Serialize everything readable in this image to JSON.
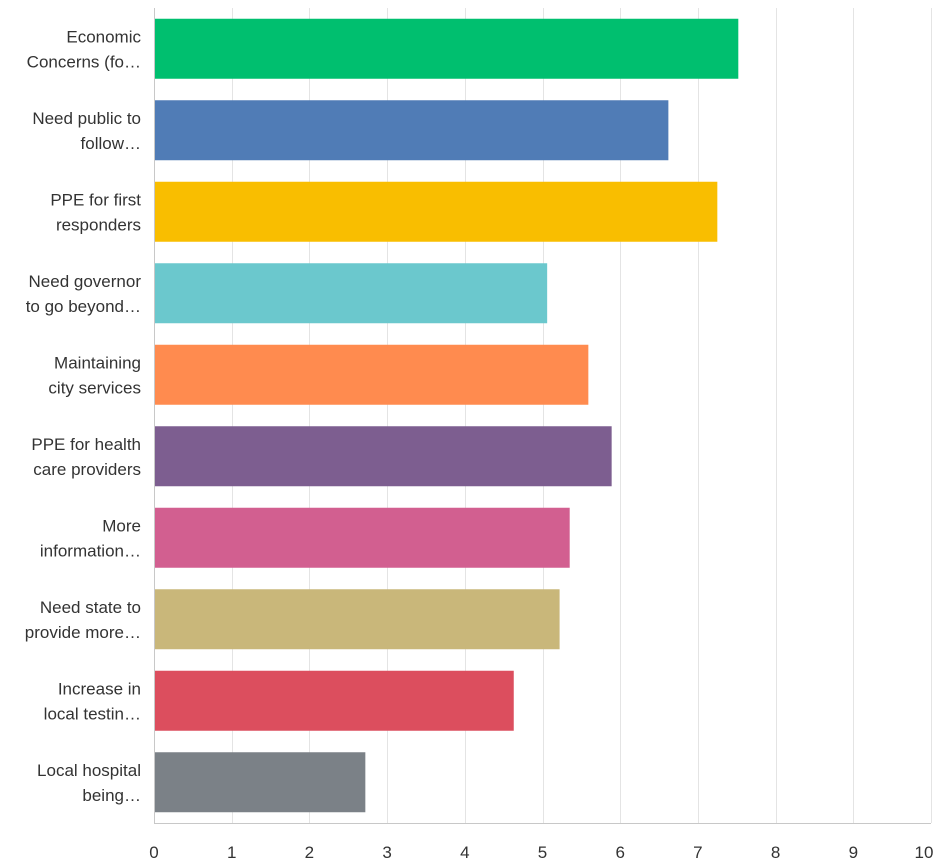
{
  "chart_data": {
    "type": "bar",
    "orientation": "horizontal",
    "categories": [
      [
        "Economic",
        "Concerns (fo…"
      ],
      [
        "Need public to",
        "follow…"
      ],
      [
        "PPE for first",
        "responders"
      ],
      [
        "Need governor",
        "to go beyond…"
      ],
      [
        "Maintaining",
        "city services"
      ],
      [
        "PPE for health",
        "care providers"
      ],
      [
        "More",
        "information…"
      ],
      [
        "Need state to",
        "provide more…"
      ],
      [
        "Increase in",
        "local testin…"
      ],
      [
        "Local hospital",
        "being…"
      ]
    ],
    "values": [
      7.52,
      6.62,
      7.25,
      5.06,
      5.59,
      5.89,
      5.35,
      5.22,
      4.63,
      2.72
    ],
    "colors": [
      "#00bf6f",
      "#507cb6",
      "#f9be00",
      "#6bc8cd",
      "#ff8b4f",
      "#7d5e90",
      "#d25f90",
      "#c9b77a",
      "#dc4e5e",
      "#7b8187"
    ],
    "xlim": [
      0,
      10
    ],
    "xticks": [
      "0",
      "1",
      "2",
      "3",
      "4",
      "5",
      "6",
      "7",
      "8",
      "9",
      "10"
    ],
    "grid": true,
    "title": "",
    "xlabel": "",
    "ylabel": ""
  }
}
